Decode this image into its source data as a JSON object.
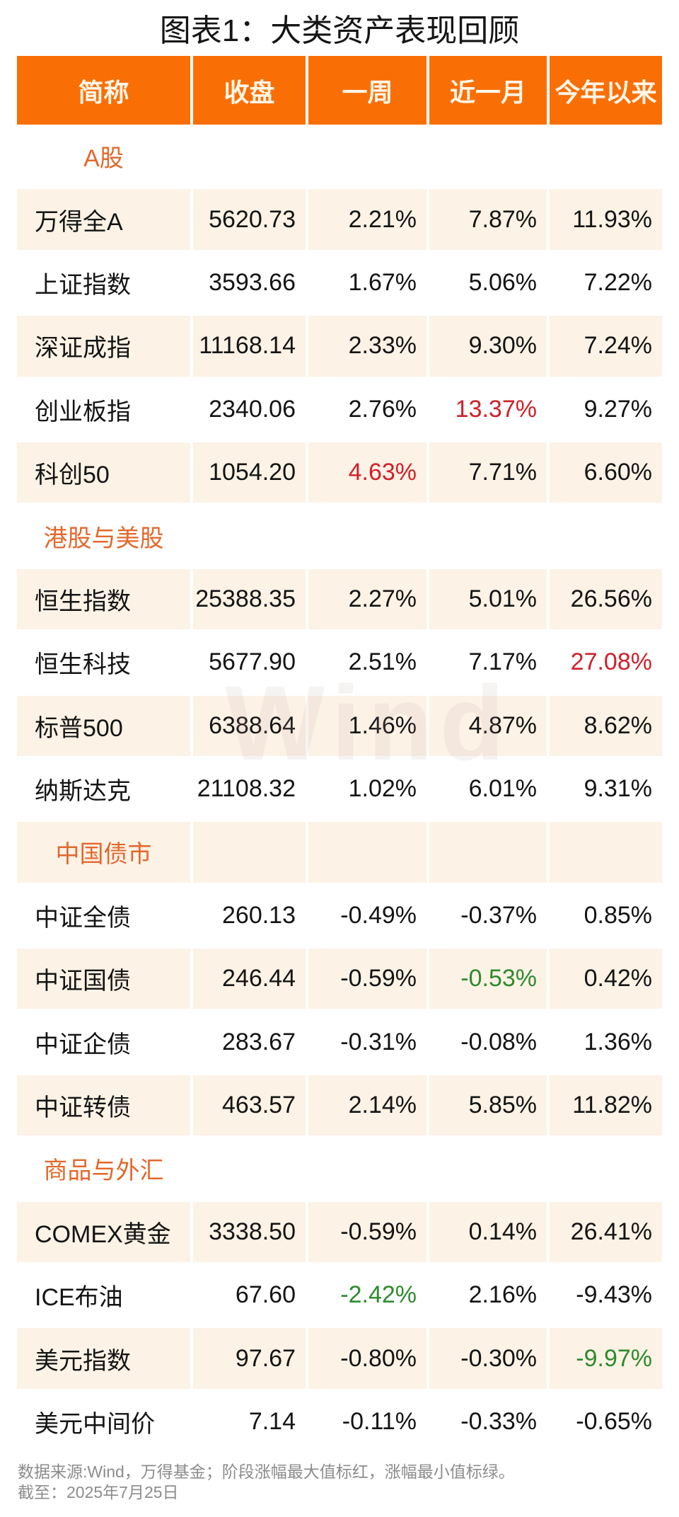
{
  "chart_data": {
    "type": "table",
    "title": "图表1：大类资产表现回顾",
    "columns": [
      "简称",
      "收盘",
      "一周",
      "近一月",
      "今年以来"
    ],
    "rows": [
      {
        "section": "A股"
      },
      {
        "name": "万得全A",
        "close": "5620.73",
        "week": "2.21%",
        "month": "7.87%",
        "ytd": "11.93%"
      },
      {
        "name": "上证指数",
        "close": "3593.66",
        "week": "1.67%",
        "month": "5.06%",
        "ytd": "7.22%"
      },
      {
        "name": "深证成指",
        "close": "11168.14",
        "week": "2.33%",
        "month": "9.30%",
        "ytd": "7.24%"
      },
      {
        "name": "创业板指",
        "close": "2340.06",
        "week": "2.76%",
        "month": "13.37%",
        "ytd": "9.27%",
        "hl": {
          "month": "max"
        }
      },
      {
        "name": "科创50",
        "close": "1054.20",
        "week": "4.63%",
        "month": "7.71%",
        "ytd": "6.60%",
        "hl": {
          "week": "max"
        }
      },
      {
        "section": "港股与美股"
      },
      {
        "name": "恒生指数",
        "close": "25388.35",
        "week": "2.27%",
        "month": "5.01%",
        "ytd": "26.56%"
      },
      {
        "name": "恒生科技",
        "close": "5677.90",
        "week": "2.51%",
        "month": "7.17%",
        "ytd": "27.08%",
        "hl": {
          "ytd": "max"
        }
      },
      {
        "name": "标普500",
        "close": "6388.64",
        "week": "1.46%",
        "month": "4.87%",
        "ytd": "8.62%"
      },
      {
        "name": "纳斯达克",
        "close": "21108.32",
        "week": "1.02%",
        "month": "6.01%",
        "ytd": "9.31%"
      },
      {
        "section": "中国债市"
      },
      {
        "name": "中证全债",
        "close": "260.13",
        "week": "-0.49%",
        "month": "-0.37%",
        "ytd": "0.85%"
      },
      {
        "name": "中证国债",
        "close": "246.44",
        "week": "-0.59%",
        "month": "-0.53%",
        "ytd": "0.42%",
        "hl": {
          "month": "min"
        }
      },
      {
        "name": "中证企债",
        "close": "283.67",
        "week": "-0.31%",
        "month": "-0.08%",
        "ytd": "1.36%"
      },
      {
        "name": "中证转债",
        "close": "463.57",
        "week": "2.14%",
        "month": "5.85%",
        "ytd": "11.82%"
      },
      {
        "section": "商品与外汇"
      },
      {
        "name": "COMEX黄金",
        "close": "3338.50",
        "week": "-0.59%",
        "month": "0.14%",
        "ytd": "26.41%"
      },
      {
        "name": "ICE布油",
        "close": "67.60",
        "week": "-2.42%",
        "month": "2.16%",
        "ytd": "-9.43%",
        "hl": {
          "week": "min"
        }
      },
      {
        "name": "美元指数",
        "close": "97.67",
        "week": "-0.80%",
        "month": "-0.30%",
        "ytd": "-9.97%",
        "hl": {
          "ytd": "min"
        }
      },
      {
        "name": "美元中间价",
        "close": "7.14",
        "week": "-0.11%",
        "month": "-0.33%",
        "ytd": "-0.65%"
      }
    ]
  },
  "watermark": "Wind",
  "footer": {
    "source": "数据来源:Wind，万得基金；阶段涨幅最大值标红，涨幅最小值标绿。",
    "as_of": "截至：2025年7月25日"
  },
  "colors": {
    "header_bg": "#f96f06",
    "header_text": "#fff6e8",
    "section_label": "#e2682c",
    "stripe": "#fdf2e6",
    "max_red": "#d0202a",
    "min_green": "#2e8b2e",
    "footer_text": "#8c8c8c"
  }
}
